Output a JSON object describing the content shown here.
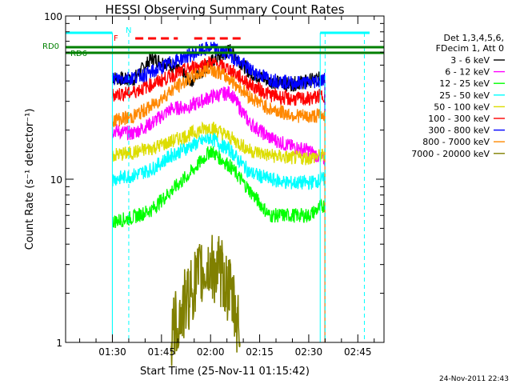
{
  "chart_data": {
    "type": "line",
    "title": "HESSI Observing Summary Count Rates",
    "xlabel": "Start Time (25-Nov-11 01:15:42)",
    "ylabel": "Count Rate (s⁻¹ detector⁻¹)",
    "yscale": "log",
    "ylim": [
      1,
      100
    ],
    "xlim": [
      "01:15:42",
      "02:53:00"
    ],
    "x_ticks": [
      "01:30",
      "01:45",
      "02:00",
      "02:15",
      "02:30",
      "02:45"
    ],
    "y_ticks": [
      "1",
      "10",
      "100"
    ],
    "grid": false,
    "legend_position": "right",
    "legend_header": [
      "Det 1,3,4,5,6,",
      "FDecim 1, Att 0"
    ],
    "timestamp": "24-Nov-2011 22:43",
    "series": [
      {
        "name": "3 - 6 keV",
        "color": "#000000",
        "x": [
          "01:30",
          "01:36",
          "01:42",
          "01:48",
          "01:54",
          "02:00",
          "02:06",
          "02:12",
          "02:18",
          "02:24",
          "02:30",
          "02:35"
        ],
        "values": [
          42,
          40,
          55,
          50,
          40,
          52,
          62,
          45,
          40,
          38,
          40,
          42
        ]
      },
      {
        "name": "6 - 12 keV",
        "color": "#ff00ff",
        "x": [
          "01:30",
          "01:36",
          "01:42",
          "01:48",
          "01:54",
          "02:00",
          "02:06",
          "02:12",
          "02:18",
          "02:24",
          "02:30",
          "02:35"
        ],
        "values": [
          20,
          19,
          22,
          27,
          28,
          32,
          34,
          22,
          18,
          16,
          15,
          13
        ]
      },
      {
        "name": "12 - 25 keV",
        "color": "#00ff00",
        "x": [
          "01:30",
          "01:36",
          "01:42",
          "01:48",
          "01:54",
          "02:00",
          "02:06",
          "02:12",
          "02:18",
          "02:24",
          "02:30",
          "02:35"
        ],
        "values": [
          5.5,
          5.8,
          6.5,
          8.5,
          11,
          15,
          12,
          8.5,
          6,
          6,
          6,
          7
        ]
      },
      {
        "name": "25 - 50 keV",
        "color": "#00ffff",
        "x": [
          "01:30",
          "01:36",
          "01:42",
          "01:48",
          "01:54",
          "02:00",
          "02:06",
          "02:12",
          "02:18",
          "02:24",
          "02:30",
          "02:35"
        ],
        "values": [
          10,
          10.5,
          11.5,
          14,
          16,
          18,
          15,
          11,
          10,
          9.5,
          9.5,
          10
        ]
      },
      {
        "name": "50 - 100 keV",
        "color": "#dddd00",
        "x": [
          "01:30",
          "01:36",
          "01:42",
          "01:48",
          "01:54",
          "02:00",
          "02:06",
          "02:12",
          "02:18",
          "02:24",
          "02:30",
          "02:35"
        ],
        "values": [
          14,
          14.5,
          15.5,
          17,
          19,
          21,
          18,
          15,
          14,
          13.5,
          13.5,
          14
        ]
      },
      {
        "name": "100 - 300 keV",
        "color": "#ff0000",
        "x": [
          "01:30",
          "01:36",
          "01:42",
          "01:48",
          "01:54",
          "02:00",
          "02:06",
          "02:12",
          "02:18",
          "02:24",
          "02:30",
          "02:35"
        ],
        "values": [
          33,
          34,
          38,
          43,
          48,
          52,
          47,
          38,
          33,
          31,
          31,
          33
        ]
      },
      {
        "name": "300 - 800 keV",
        "color": "#0000ff",
        "x": [
          "01:30",
          "01:36",
          "01:42",
          "01:48",
          "01:54",
          "02:00",
          "02:06",
          "02:12",
          "02:18",
          "02:24",
          "02:30",
          "02:35"
        ],
        "values": [
          41,
          42,
          45,
          52,
          58,
          64,
          58,
          47,
          41,
          39,
          39,
          41
        ]
      },
      {
        "name": "800 - 7000 keV",
        "color": "#ff8800",
        "x": [
          "01:30",
          "01:36",
          "01:42",
          "01:48",
          "01:54",
          "02:00",
          "02:06",
          "02:12",
          "02:18",
          "02:24",
          "02:30",
          "02:35"
        ],
        "values": [
          23,
          24,
          28,
          35,
          42,
          48,
          41,
          32,
          27,
          25,
          24,
          25
        ]
      },
      {
        "name": "7000 - 20000 keV",
        "color": "#808000",
        "x": [
          "01:48",
          "01:51",
          "01:54",
          "01:57",
          "02:00",
          "02:03",
          "02:06",
          "02:09"
        ],
        "values": [
          1.1,
          1.5,
          2.1,
          2.6,
          2.9,
          2.7,
          2.0,
          1.2
        ]
      }
    ],
    "annotations": [
      {
        "text": "RD0",
        "color": "#008000"
      },
      {
        "text": "RD6",
        "color": "#008000"
      },
      {
        "text": "N",
        "color": "#00ffff"
      },
      {
        "text": "F",
        "color": "#ff0000"
      }
    ]
  }
}
